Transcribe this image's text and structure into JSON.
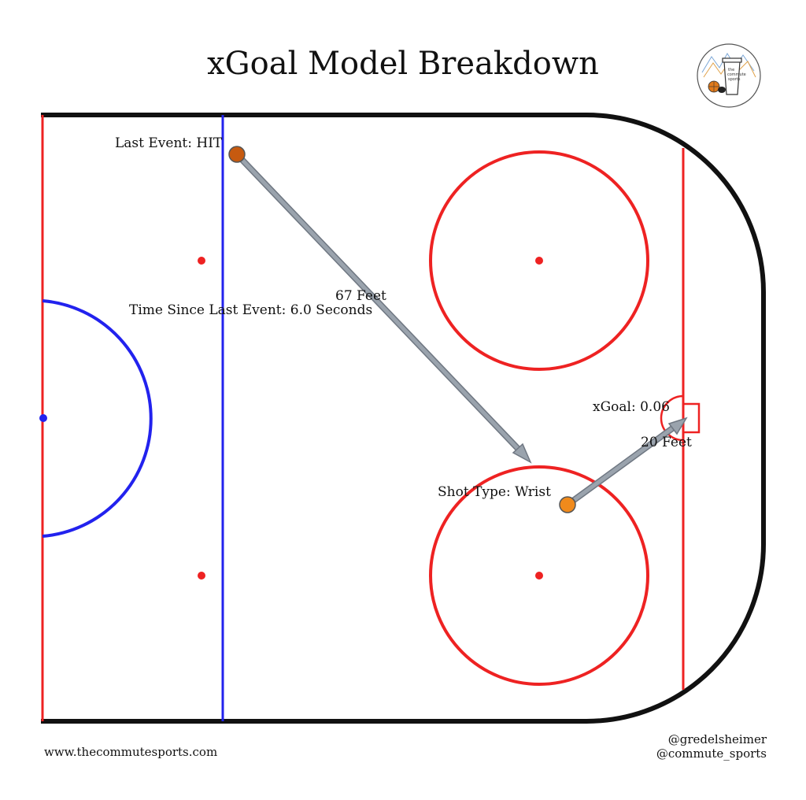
{
  "header": {
    "title": "xGoal Model Breakdown"
  },
  "logo": {
    "line1": "the",
    "line2": "commute",
    "line3": "sports"
  },
  "annotations": {
    "last_event": "Last Event: HIT",
    "time_since": "Time Since Last Event: 6.0 Seconds",
    "pass_distance": "67 Feet",
    "shot_type": "Shot Type: Wrist",
    "xgoal": "xGoal: 0.06",
    "shot_distance": "20 Feet"
  },
  "footer": {
    "website": "www.thecommutesports.com",
    "handle1": "@gredelsheimer",
    "handle2": "@commute_sports"
  },
  "colors": {
    "board": "#111111",
    "red_line": "#ee2222",
    "blue_line": "#2222ee",
    "event_marker": "#c65a10",
    "shot_marker": "#f08a1c",
    "arrow": "#9aa3ad"
  }
}
